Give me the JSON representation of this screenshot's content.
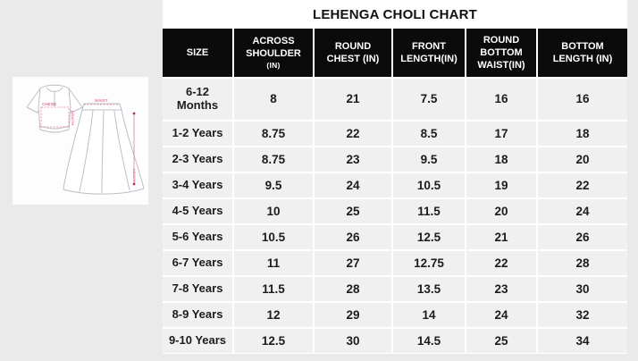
{
  "accent_colors": {
    "header_bg": "#0b0b0b",
    "header_text": "#ffffff",
    "cell_bg": "#f0f0f0",
    "page_bg": "#eaeaea",
    "measure_pink": "#e4789d"
  },
  "illustration": {
    "labels": {
      "chest": "CHEST",
      "top_length": "LENGTH",
      "waist": "WAIST",
      "skirt_length": "LENGTH"
    }
  },
  "chart_data": {
    "type": "table",
    "title": "LEHENGA CHOLI CHART",
    "columns": [
      {
        "label": "SIZE",
        "l1": "SIZE"
      },
      {
        "label": "ACROSS SHOULDER (IN)",
        "l1": "ACROSS",
        "l2": "SHOULDER",
        "l3": "(IN)"
      },
      {
        "label": "ROUND CHEST (IN)",
        "l1": "ROUND",
        "l2": "CHEST (IN)"
      },
      {
        "label": "FRONT LENGTH(IN)",
        "l1": "FRONT",
        "l2": "LENGTH(IN)"
      },
      {
        "label": "ROUND BOTTOM WAIST(IN)",
        "l1": "ROUND",
        "l2": "BOTTOM",
        "l3": "WAIST(IN)"
      },
      {
        "label": "BOTTOM LENGTH (IN)",
        "l1": "BOTTOM",
        "l2": "LENGTH (IN)"
      }
    ],
    "rows": [
      {
        "size": "6-12 Months",
        "size_lines": [
          "6-12",
          "Months"
        ],
        "values": [
          "8",
          "21",
          "7.5",
          "16",
          "16"
        ]
      },
      {
        "size": "1-2 Years",
        "values": [
          "8.75",
          "22",
          "8.5",
          "17",
          "18"
        ]
      },
      {
        "size": "2-3 Years",
        "values": [
          "8.75",
          "23",
          "9.5",
          "18",
          "20"
        ]
      },
      {
        "size": "3-4 Years",
        "values": [
          "9.5",
          "24",
          "10.5",
          "19",
          "22"
        ]
      },
      {
        "size": "4-5 Years",
        "values": [
          "10",
          "25",
          "11.5",
          "20",
          "24"
        ]
      },
      {
        "size": "5-6 Years",
        "values": [
          "10.5",
          "26",
          "12.5",
          "21",
          "26"
        ]
      },
      {
        "size": "6-7 Years",
        "values": [
          "11",
          "27",
          "12.75",
          "22",
          "28"
        ]
      },
      {
        "size": "7-8 Years",
        "values": [
          "11.5",
          "28",
          "13.5",
          "23",
          "30"
        ]
      },
      {
        "size": "8-9 Years",
        "values": [
          "12",
          "29",
          "14",
          "24",
          "32"
        ]
      },
      {
        "size": "9-10 Years",
        "values": [
          "12.5",
          "30",
          "14.5",
          "25",
          "34"
        ]
      }
    ]
  }
}
